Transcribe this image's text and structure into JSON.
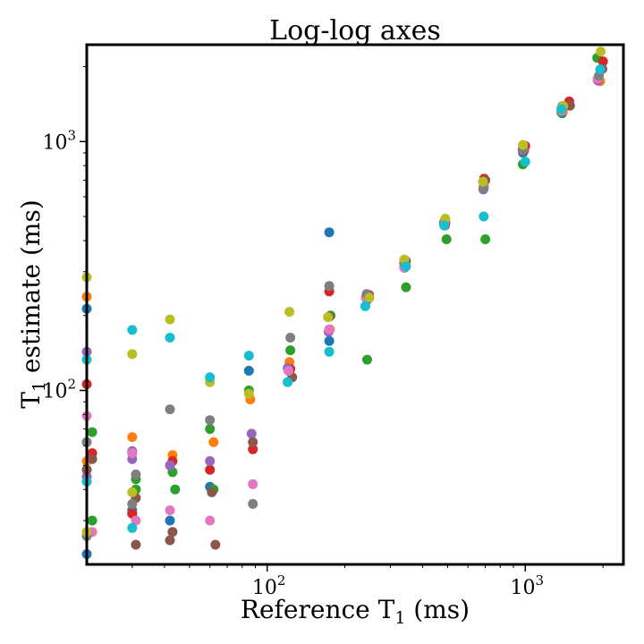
{
  "chart_data": {
    "type": "scatter",
    "title": "Log-log axes",
    "xlabel": {
      "main": "Reference T",
      "sub": "1",
      "suffix": " (ms)"
    },
    "ylabel": {
      "main": "T",
      "sub": "1",
      "suffix": " estimate (ms)"
    },
    "xscale": "log",
    "yscale": "log",
    "xlim": [
      20,
      2400
    ],
    "ylim": [
      20,
      2450
    ],
    "grid": false,
    "legend": "none",
    "x_major_ticks": [
      {
        "value": 100,
        "base": "10",
        "exp": "2"
      },
      {
        "value": 1000,
        "base": "10",
        "exp": "3"
      }
    ],
    "y_major_ticks": [
      {
        "value": 100,
        "base": "10",
        "exp": "2"
      },
      {
        "value": 1000,
        "base": "10",
        "exp": "3"
      }
    ],
    "colors": [
      "#1f77b4",
      "#ff7f0e",
      "#2ca02c",
      "#d62728",
      "#9467bd",
      "#8c564b",
      "#e377c2",
      "#7f7f7f",
      "#bcbd22",
      "#17becf"
    ],
    "series": [
      {
        "color": "#1f77b4",
        "x": [
          20,
          30,
          42,
          60,
          85,
          121,
          174,
          245,
          340,
          485,
          690,
          980,
          1390,
          1920,
          20,
          30,
          174
        ],
        "y": [
          213,
          32,
          30,
          41,
          120,
          120,
          158,
          232,
          311,
          468,
          648,
          902,
          1300,
          1800,
          22,
          33,
          432
        ]
      },
      {
        "color": "#ff7f0e",
        "x": [
          20,
          30,
          43,
          62,
          86,
          122,
          175,
          246,
          341,
          487,
          692,
          985,
          1400,
          1950,
          20,
          30
        ],
        "y": [
          238,
          65,
          55,
          62,
          92,
          130,
          176,
          242,
          320,
          480,
          670,
          920,
          1320,
          1750,
          52,
          56
        ]
      },
      {
        "color": "#2ca02c",
        "x": [
          21,
          31,
          43,
          60,
          85,
          123,
          176,
          244,
          345,
          495,
          700,
          978,
          1380,
          1900,
          21,
          31,
          44,
          62
        ],
        "y": [
          68,
          44,
          47,
          70,
          100,
          145,
          200,
          133,
          260,
          405,
          405,
          810,
          1310,
          2170,
          30,
          40,
          40,
          40
        ]
      },
      {
        "color": "#d62728",
        "x": [
          20,
          30,
          43,
          60,
          88,
          123,
          174,
          248,
          340,
          488,
          693,
          1000,
          1480,
          2000,
          21
        ],
        "y": [
          106,
          32,
          52,
          48,
          58,
          122,
          250,
          242,
          330,
          460,
          710,
          960,
          1450,
          2100,
          56
        ]
      },
      {
        "color": "#9467bd",
        "x": [
          20,
          30,
          42,
          60,
          87,
          120,
          173,
          244,
          342,
          490,
          688,
          976,
          1392,
          1910,
          20,
          30
        ],
        "y": [
          143,
          53,
          50,
          52,
          67,
          123,
          172,
          241,
          323,
          474,
          642,
          930,
          1388,
          1760,
          45,
          57
        ]
      },
      {
        "color": "#8c564b",
        "x": [
          20,
          31,
          42,
          61,
          88,
          125,
          174,
          245,
          345,
          490,
          700,
          990,
          1490,
          1990,
          21,
          31,
          43,
          63
        ],
        "y": [
          48,
          24,
          25,
          39,
          62,
          113,
          198,
          240,
          331,
          470,
          700,
          920,
          1395,
          1960,
          53,
          37,
          27,
          24
        ]
      },
      {
        "color": "#e377c2",
        "x": [
          20,
          30,
          42,
          60,
          88,
          121,
          174,
          241,
          339,
          486,
          692,
          982,
          1385,
          1905,
          21,
          31
        ],
        "y": [
          79,
          56,
          33,
          30,
          42,
          120,
          176,
          236,
          312,
          470,
          660,
          930,
          1330,
          1790,
          27,
          30
        ]
      },
      {
        "color": "#7f7f7f",
        "x": [
          20,
          31,
          42,
          60,
          88,
          123,
          174,
          243,
          339,
          484,
          688,
          977,
          1395,
          1930,
          20,
          30
        ],
        "y": [
          62,
          46,
          84,
          76,
          35,
          163,
          263,
          244,
          326,
          472,
          650,
          926,
          1390,
          1840,
          26,
          35
        ]
      },
      {
        "color": "#bcbd22",
        "x": [
          20,
          30,
          42,
          60,
          85,
          122,
          172,
          249,
          340,
          490,
          685,
          980,
          1402,
          1960,
          20,
          30
        ],
        "y": [
          285,
          140,
          193,
          108,
          97,
          207,
          197,
          236,
          336,
          490,
          690,
          970,
          1390,
          2300,
          27,
          39
        ]
      },
      {
        "color": "#17becf",
        "x": [
          20,
          30,
          42,
          60,
          85,
          120,
          174,
          240,
          345,
          485,
          690,
          1000,
          1380,
          1950,
          20,
          30
        ],
        "y": [
          133,
          175,
          163,
          113,
          138,
          108,
          143,
          218,
          315,
          460,
          500,
          830,
          1350,
          1950,
          43,
          28
        ]
      }
    ]
  }
}
